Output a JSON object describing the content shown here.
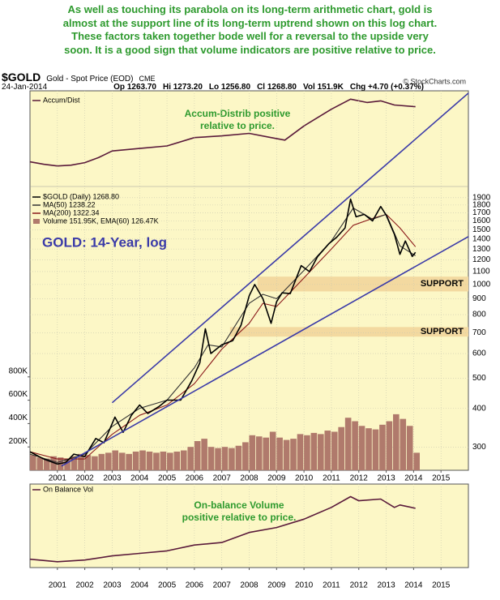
{
  "intro": {
    "lines": [
      "As well as touching its parabola on its long-term arithmetic chart, gold is",
      "almost at the support line of its long-term uptrend shown on this log chart.",
      "These factors taken together bode well for a reversal to the upside very",
      "soon. It is a good sign that volume indicators are positive relative to price."
    ]
  },
  "header": {
    "symbol": "$GOLD",
    "name": "Gold - Spot Price (EOD)",
    "exchange": "CME",
    "date": "24-Jan-2014",
    "stats": [
      "Op 1263.70",
      "Hi 1273.20",
      "Lo 1256.80",
      "Cl 1268.80",
      "Vol 151.9K",
      "Chg +4.70 (+0.37%)"
    ]
  },
  "watermark": "© StockCharts.com",
  "chart_data": [
    {
      "type": "line",
      "annotation": [
        "Accum-Distrib positive",
        "relative to price."
      ],
      "xlim": [
        2000,
        2016
      ],
      "ylim": [
        0,
        100
      ],
      "series": [
        {
          "name": "Accum/Dist",
          "color": "#5a1a3a",
          "x": [
            2000.0,
            2000.5,
            2001.0,
            2001.5,
            2002.0,
            2002.5,
            2003.0,
            2004.0,
            2005.0,
            2006.0,
            2007.0,
            2008.0,
            2008.8,
            2009.3,
            2010.0,
            2011.0,
            2011.7,
            2012.3,
            2012.8,
            2013.3,
            2014.07
          ],
          "values": [
            15,
            12,
            10,
            11,
            14,
            20,
            28,
            31,
            34,
            44,
            46,
            49,
            44,
            41,
            58,
            78,
            90,
            86,
            88,
            83,
            81
          ]
        }
      ]
    },
    {
      "type": "line",
      "title": "GOLD: 14-Year, log",
      "log_scale": true,
      "grid": true,
      "xlim": [
        2000,
        2016
      ],
      "xticks": [
        2001,
        2002,
        2003,
        2004,
        2005,
        2006,
        2007,
        2008,
        2009,
        2010,
        2011,
        2012,
        2013,
        2014,
        2015
      ],
      "ylim": [
        253,
        4190
      ],
      "yticks": [
        300,
        400,
        500,
        600,
        700,
        800,
        900,
        1000,
        1100,
        1200,
        1300,
        1400,
        1500,
        1600,
        1700,
        1800,
        1900
      ],
      "y2lim": [
        0,
        3250000
      ],
      "y2ticks": [
        {
          "value": 200000,
          "label": "200K"
        },
        {
          "value": 400000,
          "label": "400K"
        },
        {
          "value": 600000,
          "label": "600K"
        },
        {
          "value": 800000,
          "label": "800K"
        }
      ],
      "series": [
        {
          "name": "Volume 151.95K, EMA(60) 126.47K",
          "type": "bar",
          "axis": "y2",
          "color": "#b07a6c",
          "x": [
            2000.0,
            2000.25,
            2000.5,
            2000.75,
            2001.0,
            2001.25,
            2001.5,
            2001.75,
            2002.0,
            2002.25,
            2002.5,
            2002.75,
            2003.0,
            2003.25,
            2003.5,
            2003.75,
            2004.0,
            2004.25,
            2004.5,
            2004.75,
            2005.0,
            2005.25,
            2005.5,
            2005.75,
            2006.0,
            2006.25,
            2006.5,
            2006.75,
            2007.0,
            2007.25,
            2007.5,
            2007.75,
            2008.0,
            2008.25,
            2008.5,
            2008.75,
            2009.0,
            2009.25,
            2009.5,
            2009.75,
            2010.0,
            2010.25,
            2010.5,
            2010.75,
            2011.0,
            2011.25,
            2011.5,
            2011.75,
            2012.0,
            2012.25,
            2012.5,
            2012.75,
            2013.0,
            2013.25,
            2013.5,
            2013.75,
            2014.0
          ],
          "values": [
            130000,
            110000,
            100000,
            120000,
            110000,
            100000,
            120000,
            140000,
            130000,
            120000,
            140000,
            150000,
            170000,
            150000,
            140000,
            160000,
            170000,
            160000,
            150000,
            160000,
            150000,
            160000,
            170000,
            200000,
            250000,
            270000,
            200000,
            190000,
            200000,
            190000,
            210000,
            240000,
            300000,
            290000,
            280000,
            330000,
            280000,
            260000,
            270000,
            310000,
            300000,
            320000,
            310000,
            340000,
            330000,
            370000,
            450000,
            420000,
            380000,
            360000,
            350000,
            390000,
            420000,
            480000,
            440000,
            380000,
            150000
          ]
        },
        {
          "name": "MA(200) 1322.34",
          "color": "#8b1a1a",
          "x": [
            2000,
            2001,
            2002,
            2003,
            2004,
            2005,
            2006,
            2007,
            2008,
            2008.5,
            2009,
            2010,
            2011,
            2011.8,
            2012.5,
            2013,
            2013.5,
            2014.07
          ],
          "values": [
            290,
            275,
            275,
            330,
            380,
            410,
            480,
            620,
            750,
            870,
            850,
            1050,
            1300,
            1550,
            1630,
            1680,
            1520,
            1322
          ]
        },
        {
          "name": "MA(50) 1238.22",
          "color": "#333333",
          "x": [
            2000,
            2001,
            2002,
            2003,
            2004,
            2005,
            2006,
            2006.5,
            2007,
            2008,
            2008.5,
            2009,
            2010,
            2011,
            2011.8,
            2012.5,
            2013,
            2013.5,
            2014.07
          ],
          "values": [
            285,
            268,
            285,
            350,
            400,
            425,
            540,
            640,
            630,
            870,
            930,
            900,
            1110,
            1380,
            1760,
            1620,
            1680,
            1330,
            1238
          ]
        },
        {
          "name": "$GOLD (Daily) 1268.80",
          "color": "#000000",
          "x": [
            2000.0,
            2000.5,
            2001.0,
            2001.3,
            2001.6,
            2002.0,
            2002.4,
            2002.7,
            2003.1,
            2003.4,
            2003.7,
            2004.0,
            2004.3,
            2004.7,
            2005.0,
            2005.5,
            2005.9,
            2006.2,
            2006.4,
            2006.6,
            2007.0,
            2007.4,
            2007.7,
            2008.0,
            2008.2,
            2008.5,
            2008.8,
            2009.0,
            2009.2,
            2009.5,
            2009.9,
            2010.2,
            2010.5,
            2010.9,
            2011.2,
            2011.5,
            2011.7,
            2011.9,
            2012.2,
            2012.5,
            2012.8,
            2013.0,
            2013.3,
            2013.5,
            2013.7,
            2013.95,
            2014.07
          ],
          "values": [
            290,
            275,
            265,
            268,
            285,
            280,
            320,
            310,
            375,
            335,
            380,
            410,
            385,
            405,
            425,
            425,
            490,
            560,
            720,
            600,
            640,
            660,
            740,
            920,
            1000,
            900,
            750,
            880,
            940,
            935,
            1150,
            1100,
            1230,
            1350,
            1420,
            1520,
            1880,
            1650,
            1680,
            1600,
            1780,
            1670,
            1450,
            1250,
            1380,
            1230,
            1268
          ]
        }
      ],
      "trendlines": [
        {
          "color": "#3a3aa8",
          "x": [
            2003.0,
            2016.0
          ],
          "y": [
            417,
            4120
          ]
        },
        {
          "color": "#3a3aa8",
          "x": [
            2001.15,
            2016.0
          ],
          "y": [
            261,
            1425
          ]
        }
      ],
      "support": [
        {
          "label": "SUPPORT",
          "color": "#f3d9a0",
          "x_start": 2008.3,
          "low": 950,
          "high": 1060
        },
        {
          "label": "SUPPORT",
          "color": "#f3d9a0",
          "x_start": 2007.3,
          "low": 680,
          "high": 730
        }
      ]
    },
    {
      "type": "line",
      "annotation": [
        "On-balance Volume",
        "positive relative to price."
      ],
      "grid": true,
      "xlim": [
        2000,
        2016
      ],
      "xticks": [
        2001,
        2002,
        2003,
        2004,
        2005,
        2006,
        2007,
        2008,
        2009,
        2010,
        2011,
        2012,
        2013,
        2014,
        2015
      ],
      "ylim": [
        0,
        100
      ],
      "series": [
        {
          "name": "On Balance Vol",
          "color": "#5a1a3a",
          "x": [
            2000,
            2001,
            2002,
            2003,
            2004,
            2005,
            2006,
            2007,
            2008,
            2009,
            2010,
            2011,
            2011.7,
            2012,
            2012.8,
            2013.3,
            2013.5,
            2014.07
          ],
          "values": [
            10,
            7,
            9,
            14,
            17,
            20,
            27,
            30,
            42,
            48,
            58,
            72,
            85,
            80,
            82,
            72,
            75,
            71
          ]
        }
      ]
    }
  ]
}
